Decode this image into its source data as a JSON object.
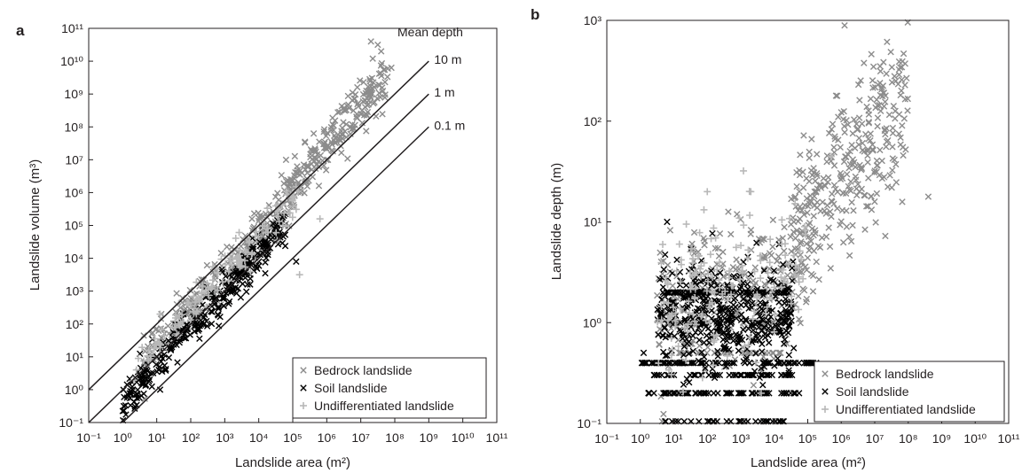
{
  "chart_data": [
    {
      "panel": "a",
      "type": "scatter",
      "xlabel": "Landslide area (m²)",
      "ylabel": "Landslide volume (m³)",
      "x_scale": "log",
      "y_scale": "log",
      "xlim_exp": [
        -1,
        11
      ],
      "ylim_exp": [
        -1,
        11
      ],
      "x_ticks": [
        -1,
        0,
        1,
        2,
        3,
        4,
        5,
        6,
        7,
        8,
        9,
        10,
        11
      ],
      "y_ticks": [
        -1,
        0,
        1,
        2,
        3,
        4,
        5,
        6,
        7,
        8,
        9,
        10,
        11
      ],
      "grid": false,
      "legend_position": "bottom-right",
      "annotation_title": "Mean depth",
      "reference_lines": [
        {
          "label": "10 m",
          "depth_m": 10
        },
        {
          "label": "1 m",
          "depth_m": 1
        },
        {
          "label": "0.1 m",
          "depth_m": 0.1
        }
      ],
      "series": [
        {
          "name": "Bedrock landslide",
          "marker": "x",
          "color": "#8c8c8c",
          "clusters": [
            {
              "x_exp": [
                0.6,
                5.0
              ],
              "slope": 1.14,
              "intercept": 0.2,
              "scatter": 0.35,
              "count": 260
            },
            {
              "x_exp": [
                4.8,
                7.8
              ],
              "slope": 1.2,
              "intercept": 0.2,
              "scatter": 0.38,
              "count": 230
            }
          ],
          "points": [
            [
              7.3,
              10.6
            ],
            [
              7.5,
              10.5
            ],
            [
              7.9,
              9.8
            ],
            [
              7.6,
              10.3
            ]
          ]
        },
        {
          "name": "Soil landslide",
          "marker": "x",
          "color": "#000000",
          "clusters": [
            {
              "x_exp": [
                0.0,
                4.8
              ],
              "slope": 1.13,
              "intercept": -0.4,
              "scatter": 0.3,
              "count": 330
            }
          ],
          "points": [
            [
              0.0,
              -0.65
            ],
            [
              1.1,
              0.0
            ],
            [
              5.1,
              3.9
            ]
          ]
        },
        {
          "name": "Undifferentiated landslide",
          "marker": "+",
          "color": "#b8b8b8",
          "clusters": [
            {
              "x_exp": [
                0.3,
                5.2
              ],
              "slope": 1.13,
              "intercept": 0.2,
              "scatter": 0.3,
              "count": 150
            }
          ],
          "points": [
            [
              5.2,
              3.5
            ],
            [
              5.8,
              5.2
            ],
            [
              1.1,
              2.3
            ]
          ]
        }
      ]
    },
    {
      "panel": "b",
      "type": "scatter",
      "xlabel": "Landslide area (m²)",
      "ylabel": "Landslide depth (m)",
      "x_scale": "log",
      "y_scale": "log",
      "xlim_exp": [
        -1,
        11
      ],
      "ylim_exp": [
        -1,
        3
      ],
      "x_ticks": [
        -1,
        0,
        1,
        2,
        3,
        4,
        5,
        6,
        7,
        8,
        9,
        10,
        11
      ],
      "y_ticks": [
        -1,
        0,
        1,
        2,
        3
      ],
      "grid": false,
      "legend_position": "bottom-right",
      "series": [
        {
          "name": "Bedrock landslide",
          "marker": "x",
          "color": "#8c8c8c",
          "clusters": [
            {
              "x_exp": [
                4.5,
                8.0
              ],
              "slope": 0.37,
              "intercept": -0.8,
              "scatter": 0.4,
              "count": 330
            },
            {
              "x_exp": [
                0.5,
                5.0
              ],
              "slope": 0.12,
              "intercept": 0.0,
              "scatter": 0.35,
              "count": 230
            }
          ],
          "bands": [
            {
              "x_exp": [
                0.8,
                4.3
              ],
              "y_exp": 0.3,
              "count": 40
            },
            {
              "x_exp": [
                0.8,
                4.5
              ],
              "y_exp": 0.0,
              "count": 40
            },
            {
              "x_exp": [
                1.0,
                4.4
              ],
              "y_exp": -0.3,
              "count": 35
            }
          ],
          "points": [
            [
              6.1,
              2.95
            ],
            [
              8.6,
              1.25
            ]
          ]
        },
        {
          "name": "Soil landslide",
          "marker": "x",
          "color": "#000000",
          "clusters": [
            {
              "x_exp": [
                0.5,
                4.6
              ],
              "slope": 0.0,
              "intercept": 0.05,
              "scatter": 0.25,
              "count": 420
            }
          ],
          "bands": [
            {
              "x_exp": [
                0.0,
                5.3
              ],
              "y_exp": -0.4,
              "count": 90
            },
            {
              "x_exp": [
                0.2,
                4.9
              ],
              "y_exp": -0.7,
              "count": 70
            },
            {
              "x_exp": [
                0.5,
                4.3
              ],
              "y_exp": -1.0,
              "count": 35
            },
            {
              "x_exp": [
                0.3,
                4.6
              ],
              "y_exp": -0.52,
              "count": 50
            },
            {
              "x_exp": [
                0.6,
                4.4
              ],
              "y_exp": 0.3,
              "count": 60
            }
          ],
          "points": [
            [
              0.8,
              1.0
            ],
            [
              0.1,
              -0.3
            ]
          ]
        },
        {
          "name": "Undifferentiated landslide",
          "marker": "+",
          "color": "#b8b8b8",
          "clusters": [
            {
              "x_exp": [
                0.5,
                5.0
              ],
              "slope": 0.1,
              "intercept": 0.1,
              "scatter": 0.35,
              "count": 170
            }
          ],
          "points": [
            [
              2.0,
              1.3
            ],
            [
              3.3,
              1.3
            ],
            [
              5.7,
              1.65
            ],
            [
              1.9,
              1.12
            ]
          ]
        }
      ]
    }
  ]
}
